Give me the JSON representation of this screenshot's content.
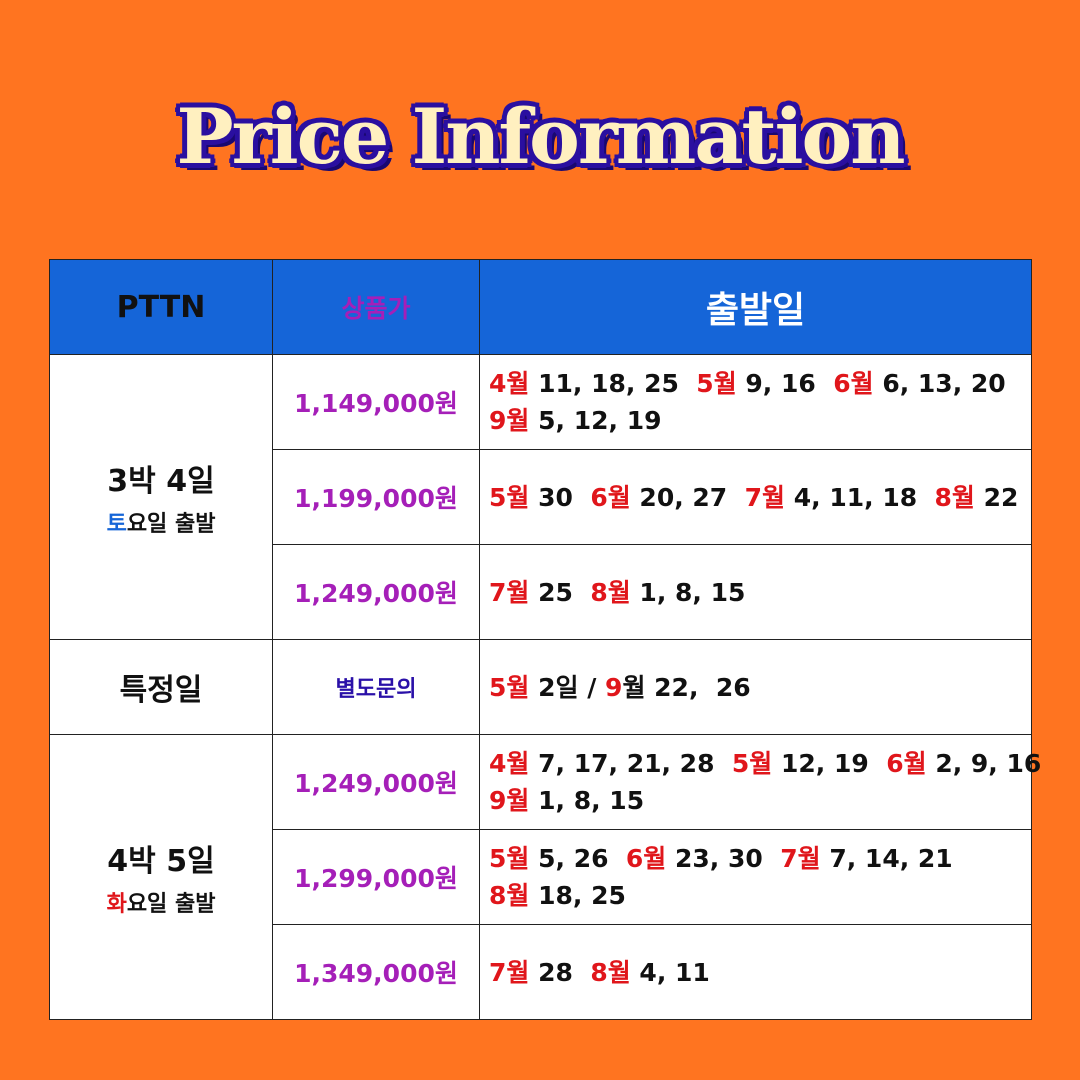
{
  "title": "Price Information",
  "headers": [
    "PTTN",
    "상품가",
    "출발일"
  ],
  "groups": [
    {
      "name": "3박 4일",
      "day_highlight": "토",
      "day_rest": "요일 출발",
      "highlight_color": "#1565D8",
      "rows": [
        {
          "price": "1,149,000원",
          "lines": [
            [
              {
                "red": "4월",
                "black": " 11, 18, 25  "
              },
              {
                "red": "5월",
                "black": " 9, 16  "
              },
              {
                "red": "6월",
                "black": " 6, 13, 20"
              }
            ],
            [
              {
                "red": "9월",
                "black": " 5, 12, 19"
              }
            ]
          ]
        },
        {
          "price": "1,199,000원",
          "lines": [
            [
              {
                "red": "5월",
                "black": " 30  "
              },
              {
                "red": "6월",
                "black": " 20, 27  "
              },
              {
                "red": "7월",
                "black": " 4, 11, 18  "
              },
              {
                "red": "8월",
                "black": " 22"
              }
            ]
          ]
        },
        {
          "price": "1,249,000원",
          "lines": [
            [
              {
                "red": "7월",
                "black": " 25  "
              },
              {
                "red": "8월",
                "black": " 1, 8, 15"
              }
            ]
          ]
        }
      ]
    },
    {
      "name": "특정일",
      "rows": [
        {
          "price": "별도문의",
          "lines": [
            [
              {
                "red": "5월",
                "black": " 2일 / "
              },
              {
                "red": "9",
                "black": "월 22,  26"
              }
            ]
          ]
        }
      ]
    },
    {
      "name": "4박 5일",
      "day_highlight": "화",
      "day_rest": "요일 출발",
      "highlight_color": "#E0161B",
      "rows": [
        {
          "price": "1,249,000원",
          "lines": [
            [
              {
                "red": "4월",
                "black": " 7, 17, 21, 28  "
              },
              {
                "red": "5월",
                "black": " 12, 19  "
              },
              {
                "red": "6월",
                "black": " 2, 9, 16"
              }
            ],
            [
              {
                "red": "9월",
                "black": " 1, 8, 15"
              }
            ]
          ]
        },
        {
          "price": "1,299,000원",
          "lines": [
            [
              {
                "red": "5월",
                "black": " 5, 26  "
              },
              {
                "red": "6월",
                "black": " 23, 30  "
              },
              {
                "red": "7월",
                "black": " 7, 14, 21"
              }
            ],
            [
              {
                "red": "8월",
                "black": " 18, 25"
              }
            ]
          ]
        },
        {
          "price": "1,349,000원",
          "lines": [
            [
              {
                "red": "7월",
                "black": " 28  "
              },
              {
                "red": "8월",
                "black": " 4, 11"
              }
            ]
          ]
        }
      ]
    }
  ],
  "colors": {
    "background": "#FF7420",
    "header": "#1565D8",
    "price": "#A51FB8",
    "month": "#E0161B",
    "inquiry": "#2A10A8",
    "title_fill": "#FFF0C0",
    "title_outline": "#2A0FA0"
  }
}
